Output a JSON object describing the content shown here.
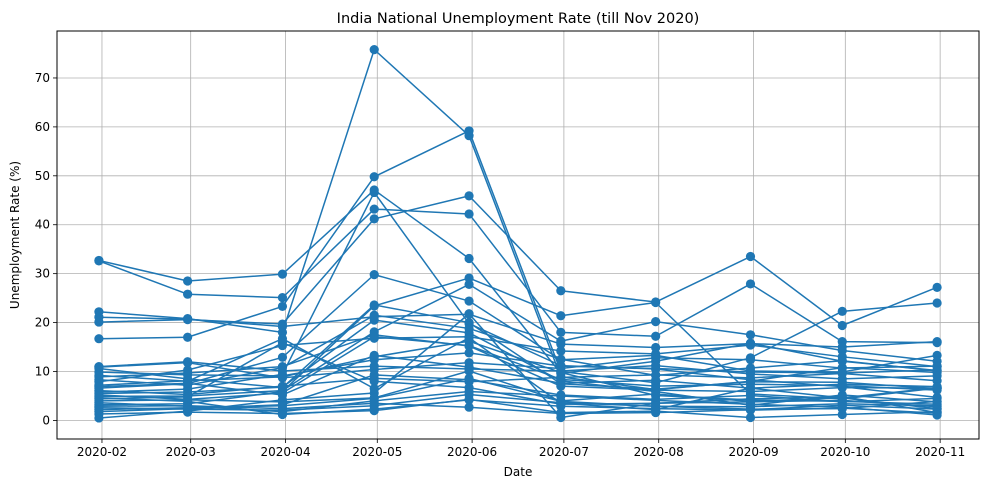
{
  "chart_data": {
    "type": "line",
    "title": "India National Unemployment Rate (till Nov 2020)",
    "xlabel": "Date",
    "ylabel": "Unemployment Rate (%)",
    "x_tick_labels": [
      "2020-02",
      "2020-03",
      "2020-04",
      "2020-05",
      "2020-06",
      "2020-07",
      "2020-08",
      "2020-09",
      "2020-10",
      "2020-11"
    ],
    "y_ticks": [
      0,
      10,
      20,
      30,
      40,
      50,
      60,
      70
    ],
    "ylim": [
      -3.8,
      79.6
    ],
    "grid": true,
    "marker": "circle",
    "color": "#1f77b4",
    "x_dates": [
      "2020-01-31",
      "2020-02-29",
      "2020-03-31",
      "2020-04-30",
      "2020-05-31",
      "2020-06-30",
      "2020-07-31",
      "2020-08-31",
      "2020-09-30",
      "2020-10-31"
    ],
    "series": [
      {
        "values": [
          5.5,
          5.8,
          6.8,
          20.5,
          17.9,
          8.1,
          5.9,
          3.1,
          5.2,
          3.8
        ]
      },
      {
        "values": [
          10.6,
          8.5,
          6.7,
          23.6,
          20.0,
          7.5,
          6.4,
          7.9,
          7.8,
          6.5
        ]
      },
      {
        "values": [
          32.7,
          28.5,
          29.9,
          47.1,
          33.1,
          9.6,
          12.1,
          15.8,
          12.1,
          10.2
        ]
      },
      {
        "values": [
          22.2,
          20.8,
          18.0,
          75.8,
          58.2,
          8.9,
          6.3,
          8.0,
          10.8,
          9.8
        ]
      },
      {
        "values": [
          20.1,
          20.6,
          19.7,
          41.2,
          45.9,
          26.5,
          24.2,
          33.5,
          19.4,
          27.2
        ]
      },
      {
        "values": [
          16.7,
          17.0,
          23.3,
          49.8,
          59.2,
          10.0,
          7.7,
          12.8,
          22.3,
          24.0
        ]
      },
      {
        "values": [
          32.6,
          25.8,
          25.1,
          43.2,
          42.2,
          18.0,
          17.2,
          27.9,
          16.1,
          15.9
        ]
      },
      {
        "values": [
          6.6,
          7.5,
          12.9,
          29.8,
          24.4,
          12.4,
          13.3,
          10.1,
          9.9,
          13.3
        ]
      },
      {
        "values": [
          21.1,
          20.7,
          19.2,
          21.2,
          21.7,
          15.6,
          14.9,
          15.7,
          15.0,
          16.1
        ]
      },
      {
        "values": [
          8.9,
          9.7,
          11.0,
          17.5,
          15.2,
          7.0,
          6.2,
          5.9,
          6.7,
          6.6
        ]
      },
      {
        "values": [
          4.9,
          5.0,
          6.1,
          18.1,
          27.8,
          16.2,
          20.2,
          17.5,
          14.3,
          12.1
        ]
      },
      {
        "values": [
          10.9,
          11.8,
          8.7,
          10.4,
          11.8,
          10.6,
          12.8,
          12.4,
          10.7,
          11.1
        ]
      },
      {
        "values": [
          3.2,
          3.4,
          5.9,
          23.4,
          29.1,
          21.4,
          24.1,
          5.4,
          4.4,
          6.6
        ]
      },
      {
        "values": [
          1.3,
          1.7,
          1.4,
          2.0,
          4.3,
          1.6,
          1.9,
          0.6,
          1.2,
          1.8
        ]
      },
      {
        "values": [
          7.2,
          8.1,
          8.9,
          13.0,
          16.2,
          9.8,
          5.1,
          4.2,
          3.9,
          3.3
        ]
      },
      {
        "values": [
          2.6,
          2.3,
          2.1,
          3.0,
          5.3,
          3.6,
          2.9,
          2.8,
          3.4,
          3.0
        ]
      },
      {
        "values": [
          5.8,
          6.4,
          9.4,
          46.6,
          19.8,
          11.2,
          10.5,
          8.3,
          6.9,
          4.7
        ]
      },
      {
        "values": [
          4.0,
          4.2,
          3.8,
          4.6,
          10.1,
          4.0,
          5.4,
          3.9,
          4.6,
          2.4
        ]
      },
      {
        "values": [
          0.5,
          1.9,
          4.2,
          5.6,
          21.8,
          0.6,
          3.5,
          4.4,
          4.9,
          1.6
        ]
      },
      {
        "values": [
          9.9,
          9.3,
          9.1,
          12.4,
          13.8,
          11.1,
          10.6,
          9.9,
          9.7,
          10.3
        ]
      },
      {
        "values": [
          1.8,
          2.4,
          3.2,
          9.3,
          8.3,
          5.2,
          4.3,
          5.1,
          3.8,
          4.5
        ]
      },
      {
        "values": [
          6.1,
          5.3,
          7.0,
          8.6,
          7.9,
          8.8,
          9.3,
          8.7,
          9.6,
          8.1
        ]
      },
      {
        "values": [
          4.4,
          4.8,
          15.9,
          8.0,
          6.7,
          3.3,
          3.5,
          3.8,
          4.1,
          2.8
        ]
      },
      {
        "values": [
          2.9,
          3.0,
          2.4,
          3.5,
          2.7,
          1.4,
          1.6,
          2.2,
          3.1,
          2.3
        ]
      },
      {
        "values": [
          7.9,
          10.3,
          15.3,
          16.8,
          17.1,
          14.2,
          13.6,
          15.4,
          13.0,
          11.0
        ]
      },
      {
        "values": [
          4.6,
          3.9,
          1.2,
          2.3,
          4.2,
          2.9,
          2.4,
          2.1,
          2.5,
          1.5
        ]
      },
      {
        "values": [
          8.3,
          7.2,
          10.8,
          21.5,
          18.8,
          12.5,
          9.2,
          10.7,
          12.2,
          10.1
        ]
      },
      {
        "values": [
          5.2,
          4.3,
          5.6,
          17.1,
          15.3,
          8.4,
          7.0,
          7.4,
          7.1,
          6.2
        ]
      },
      {
        "values": [
          3.6,
          2.9,
          1.8,
          4.0,
          5.9,
          5.0,
          4.1,
          3.3,
          2.7,
          1.1
        ]
      },
      {
        "values": [
          9.2,
          8.0,
          16.7,
          6.5,
          16.9,
          3.5,
          2.2,
          6.6,
          4.6,
          6.7
        ]
      },
      {
        "values": [
          6.9,
          7.6,
          5.2,
          13.3,
          10.9,
          7.6,
          8.2,
          6.6,
          7.4,
          6.9
        ]
      },
      {
        "values": [
          2.2,
          2.6,
          3.0,
          4.5,
          8.6,
          3.9,
          2.9,
          2.3,
          2.4,
          3.9
        ]
      },
      {
        "values": [
          11.0,
          12.0,
          10.1,
          11.1,
          10.5,
          10.1,
          11.2,
          9.5,
          8.5,
          9.1
        ]
      }
    ]
  }
}
